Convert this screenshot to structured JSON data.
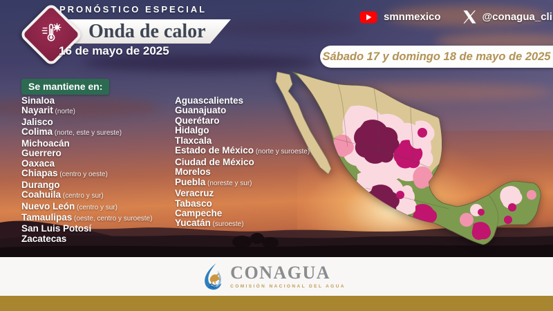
{
  "header": {
    "kicker": "PRONÓSTICO ESPECIAL",
    "title": "Onda de calor",
    "date": "16 de mayo de 2025",
    "badge": "thermometer-sun-icon"
  },
  "social": {
    "youtube_handle": "smnmexico",
    "x_handle": "@conagua_clima"
  },
  "date_range": "Sábado 17 y domingo 18 de mayo de 2025",
  "list": {
    "label": "Se mantiene en:",
    "column_left": [
      {
        "state": "Sinaloa",
        "detail": ""
      },
      {
        "state": "Nayarit",
        "detail": "(norte)"
      },
      {
        "state": "Jalisco",
        "detail": ""
      },
      {
        "state": "Colima",
        "detail": "(norte, este y sureste)"
      },
      {
        "state": "Michoacán",
        "detail": ""
      },
      {
        "state": "Guerrero",
        "detail": ""
      },
      {
        "state": "Oaxaca",
        "detail": ""
      },
      {
        "state": "Chiapas",
        "detail": "(centro y oeste)"
      },
      {
        "state": "Durango",
        "detail": ""
      },
      {
        "state": "Coahuila",
        "detail": "(centro y sur)"
      },
      {
        "state": "Nuevo León",
        "detail": "(centro y sur)"
      },
      {
        "state": "Tamaulipas",
        "detail": "(oeste, centro y suroeste)"
      },
      {
        "state": "San Luis Potosí",
        "detail": ""
      },
      {
        "state": "Zacatecas",
        "detail": ""
      }
    ],
    "column_right": [
      {
        "state": "Aguascalientes",
        "detail": ""
      },
      {
        "state": "Guanajuato",
        "detail": ""
      },
      {
        "state": "Querétaro",
        "detail": ""
      },
      {
        "state": "Hidalgo",
        "detail": ""
      },
      {
        "state": "Tlaxcala",
        "detail": ""
      },
      {
        "state": "Estado de México",
        "detail": "(norte y suroeste)"
      },
      {
        "state": "Ciudad de  México",
        "detail": ""
      },
      {
        "state": "Morelos",
        "detail": ""
      },
      {
        "state": "Puebla",
        "detail": "(noreste y sur)"
      },
      {
        "state": "Veracruz",
        "detail": ""
      },
      {
        "state": "Tabasco",
        "detail": ""
      },
      {
        "state": "Campeche",
        "detail": ""
      },
      {
        "state": "Yucatán",
        "detail": "(suroeste)"
      }
    ]
  },
  "map": {
    "name": "mexico-heat-map",
    "palette": {
      "dry_north": "#dbc795",
      "vegetation_south": "#7d9b4e",
      "heat_low": "#fbd9e0",
      "heat_mid": "#f394ae",
      "heat_high": "#c0146e",
      "heat_extreme": "#7a1a4d"
    }
  },
  "footer": {
    "logo_text": "CONAGUA",
    "logo_subtext": "COMISIÓN NACIONAL DEL AGUA"
  },
  "colors": {
    "badge_maroon": "#8c2547",
    "label_green": "#2c6b52",
    "banner_gold_text": "#b29255",
    "footer_gold": "#a8862f",
    "youtube_red": "#ff0000"
  }
}
